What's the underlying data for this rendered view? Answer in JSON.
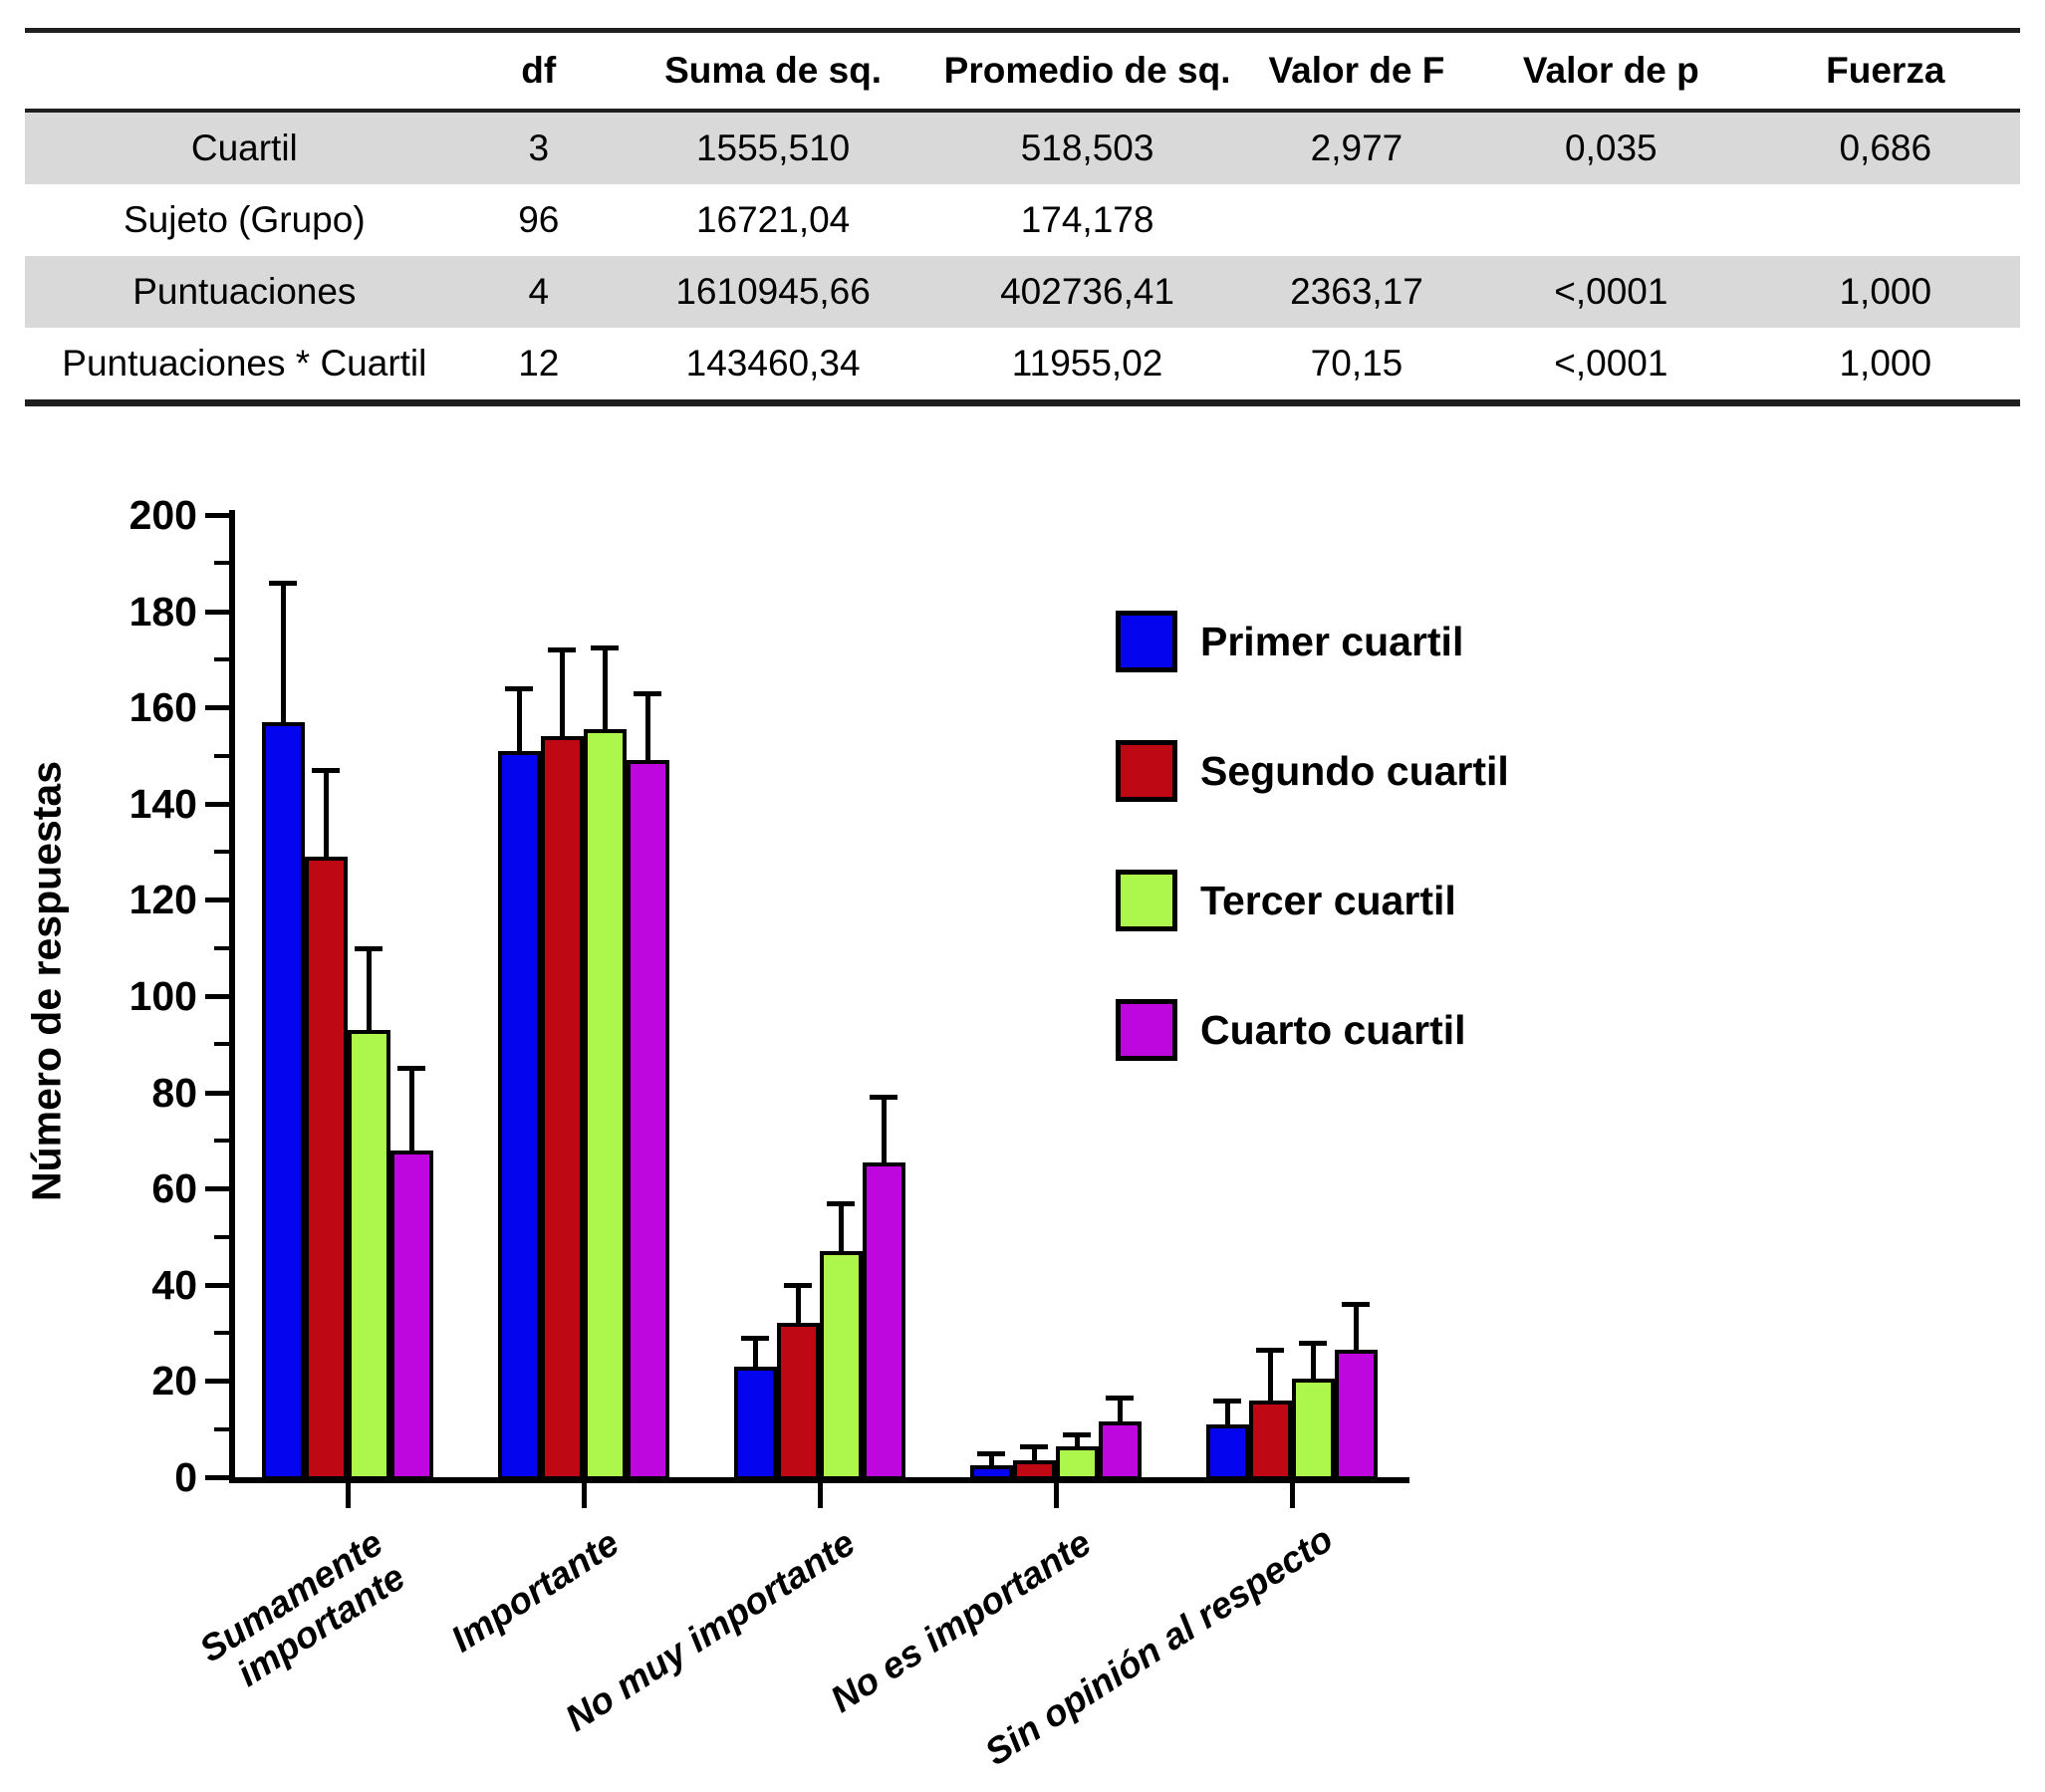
{
  "table": {
    "headers": [
      "",
      "df",
      "Suma de sq.",
      "Promedio de sq.",
      "Valor de F",
      "Valor de p",
      "Fuerza"
    ],
    "rows": [
      {
        "label": "Cuartil",
        "shaded": true,
        "values": [
          "3",
          "1555,510",
          "518,503",
          "2,977",
          "0,035",
          "0,686"
        ]
      },
      {
        "label": "Sujeto (Grupo)",
        "shaded": false,
        "values": [
          "96",
          "16721,04",
          "174,178",
          "",
          "",
          ""
        ]
      },
      {
        "label": "Puntuaciones",
        "shaded": true,
        "values": [
          "4",
          "1610945,66",
          "402736,41",
          "2363,17",
          "<,0001",
          "1,000"
        ]
      },
      {
        "label": "Puntuaciones * Cuartil",
        "shaded": false,
        "values": [
          "12",
          "143460,34",
          "11955,02",
          "70,15",
          "<,0001",
          "1,000"
        ]
      }
    ]
  },
  "chart_data": {
    "type": "bar",
    "title": "",
    "xlabel": "",
    "ylabel": "Número de respuestas",
    "ylim": [
      0,
      200
    ],
    "ytick_major_step": 20,
    "ytick_minor_step": 10,
    "grid": false,
    "legend_position": "inside-upper-right",
    "error_bars": "upper only, with caps",
    "categories": [
      "Sumamente\nimportante",
      "Importante",
      "No muy importante",
      "No es importante",
      "Sin opinión al respecto"
    ],
    "series": [
      {
        "name": "Primer cuartil",
        "color": "#0404EE",
        "values": [
          157,
          151,
          23,
          2.5,
          11
        ],
        "errors_up": [
          29,
          13,
          6,
          2.5,
          5
        ]
      },
      {
        "name": "Segundo cuartil",
        "color": "#BE0914",
        "values": [
          129,
          154,
          32,
          3.5,
          16
        ],
        "errors_up": [
          18,
          18,
          8,
          3,
          10.5
        ]
      },
      {
        "name": "Tercer cuartil",
        "color": "#ADF64C",
        "values": [
          93,
          155.5,
          47,
          6.5,
          20.5
        ],
        "errors_up": [
          17,
          17,
          10,
          2.5,
          7.5
        ]
      },
      {
        "name": "Cuarto cuartil",
        "color": "#BE06DF",
        "values": [
          68,
          149,
          65.5,
          11.5,
          26.5
        ],
        "errors_up": [
          17,
          14,
          13.5,
          5,
          9.5
        ]
      }
    ]
  }
}
